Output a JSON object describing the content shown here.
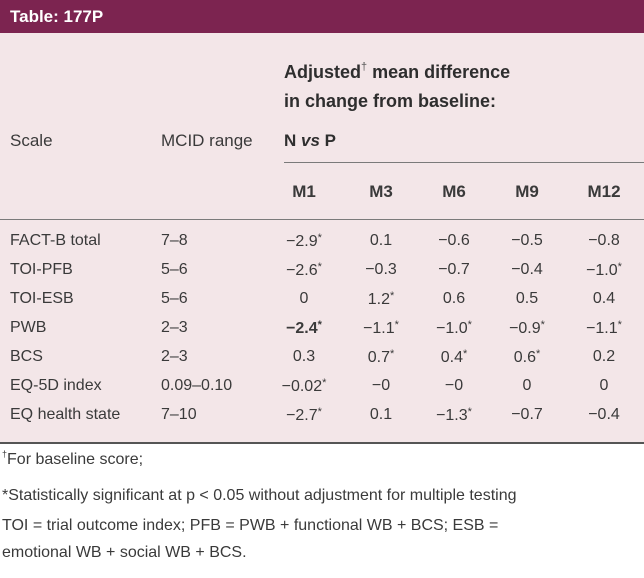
{
  "title": "Table: 177P",
  "group_header": {
    "line1": "Adjusted",
    "dagger": "†",
    "line1_rest": " mean difference",
    "line2": "in change from baseline:"
  },
  "columns": {
    "scale": "Scale",
    "mcid": "MCID range",
    "comparison_n": "N ",
    "comparison_vs": "vs",
    "comparison_p": " P",
    "months": [
      "M1",
      "M3",
      "M6",
      "M9",
      "M12"
    ]
  },
  "rows": [
    {
      "scale": "FACT-B total",
      "mcid": "7–8",
      "values": [
        "−2.9*",
        "0.1",
        "−0.6",
        "−0.5",
        "−0.8"
      ]
    },
    {
      "scale": "TOI-PFB",
      "mcid": "5–6",
      "values": [
        "−2.6*",
        "−0.3",
        "−0.7",
        "−0.4",
        "−1.0*"
      ]
    },
    {
      "scale": "TOI-ESB",
      "mcid": "5–6",
      "values": [
        "0",
        "1.2*",
        "0.6",
        "0.5",
        "0.4"
      ]
    },
    {
      "scale": "PWB",
      "mcid": "2–3",
      "values": [
        "−2.4*",
        "−1.1*",
        "−1.0*",
        "−0.9*",
        "−1.1*"
      ]
    },
    {
      "scale": "BCS",
      "mcid": "2–3",
      "values": [
        "0.3",
        "0.7*",
        "0.4*",
        "0.6*",
        "0.2"
      ]
    },
    {
      "scale": "EQ-5D index",
      "mcid": "0.09–0.10",
      "values": [
        "−0.02*",
        "−0",
        "−0",
        "0",
        "0"
      ]
    },
    {
      "scale": "EQ health state",
      "mcid": "7–10",
      "values": [
        "−2.7*",
        "0.1",
        "−1.3*",
        "−0.7",
        "−0.4"
      ]
    }
  ],
  "footnotes": {
    "dagger_mark": "†",
    "dagger_text": "For baseline score;",
    "sig": "*Statistically significant at p < 0.05 without adjustment for multiple testing",
    "abbr1": "TOI = trial outcome index; PFB = PWB + functional WB + BCS; ESB =",
    "abbr2": "emotional WB + social WB + BCS."
  },
  "colors": {
    "header_bg": "#7c2450",
    "table_bg": "#f3e6e8"
  }
}
